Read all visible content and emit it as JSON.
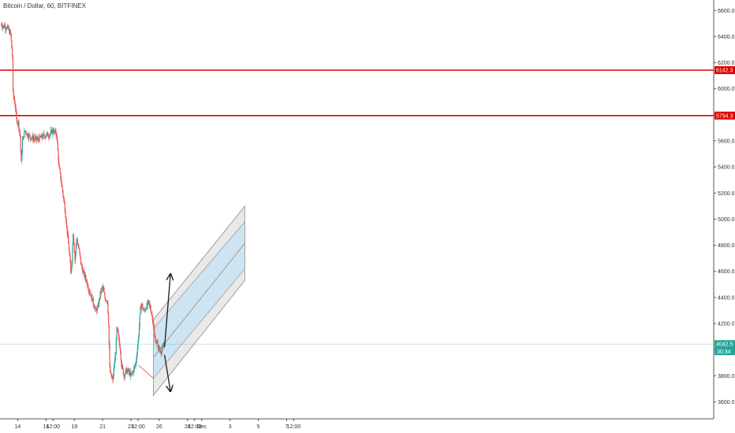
{
  "chart_data": {
    "type": "candlestick",
    "title": "Bitcoin / Dollar, 60, BITFINEX",
    "ylim": [
      3470,
      6680
    ],
    "y_ticks": [
      3600,
      3800,
      4000,
      4200,
      4400,
      4600,
      4800,
      5000,
      5200,
      5400,
      5600,
      5800,
      6000,
      6200,
      6400,
      6600
    ],
    "y_tick_labels": [
      "3600.0",
      "3800.0",
      "4000.0",
      "4200.0",
      "4400.0",
      "4600.0",
      "4800.0",
      "5000.0",
      "5200.0",
      "5400.0",
      "5600.0",
      "5800.0",
      "6000.0",
      "6200.0",
      "6400.0",
      "6600.0"
    ],
    "xlim": [
      -30,
      1180
    ],
    "x_ticks": [
      {
        "t": 0,
        "label": "14"
      },
      {
        "t": 48,
        "label": "16"
      },
      {
        "t": 60,
        "label": "12:00"
      },
      {
        "t": 96,
        "label": "19"
      },
      {
        "t": 144,
        "label": "21"
      },
      {
        "t": 192,
        "label": "23"
      },
      {
        "t": 204,
        "label": "12:00"
      },
      {
        "t": 240,
        "label": "26"
      },
      {
        "t": 288,
        "label": "28"
      },
      {
        "t": 300,
        "label": "12:00"
      },
      {
        "t": 312,
        "label": "Dec"
      },
      {
        "t": 360,
        "label": "3"
      },
      {
        "t": 408,
        "label": "5"
      },
      {
        "t": 456,
        "label": "7"
      },
      {
        "t": 468,
        "label": "12:00"
      }
    ],
    "grid": false,
    "colors": {
      "up": "#26a69a",
      "down": "#ef5350",
      "level_line": "#e00000",
      "price_line": "#26a69a",
      "channel_fill": "#cfe4f2",
      "channel_border": "#9e9e9e"
    },
    "horizontal_levels": [
      {
        "label": "6142.3",
        "value": 6142.3
      },
      {
        "label": "5794.3",
        "value": 5794.3
      }
    ],
    "current_price": {
      "label": "4042.5",
      "value": 4042.5,
      "countdown": "30:34"
    },
    "keypoints": [
      [
        -28,
        6490
      ],
      [
        -24,
        6480
      ],
      [
        -18,
        6470
      ],
      [
        -12,
        6420
      ],
      [
        -9,
        6250
      ],
      [
        -8,
        5970
      ],
      [
        -6,
        5920
      ],
      [
        -4,
        5860
      ],
      [
        -2,
        5760
      ],
      [
        1,
        5740
      ],
      [
        4,
        5640
      ],
      [
        6,
        5430
      ],
      [
        8,
        5600
      ],
      [
        12,
        5680
      ],
      [
        18,
        5640
      ],
      [
        26,
        5620
      ],
      [
        34,
        5610
      ],
      [
        44,
        5640
      ],
      [
        54,
        5650
      ],
      [
        60,
        5680
      ],
      [
        66,
        5650
      ],
      [
        70,
        5400
      ],
      [
        76,
        5220
      ],
      [
        80,
        5080
      ],
      [
        84,
        4900
      ],
      [
        88,
        4720
      ],
      [
        90,
        4580
      ],
      [
        92,
        4700
      ],
      [
        94,
        4900
      ],
      [
        97,
        4690
      ],
      [
        100,
        4850
      ],
      [
        104,
        4760
      ],
      [
        108,
        4640
      ],
      [
        112,
        4580
      ],
      [
        116,
        4540
      ],
      [
        120,
        4470
      ],
      [
        124,
        4420
      ],
      [
        128,
        4360
      ],
      [
        132,
        4300
      ],
      [
        136,
        4320
      ],
      [
        140,
        4430
      ],
      [
        144,
        4480
      ],
      [
        148,
        4390
      ],
      [
        152,
        4380
      ],
      [
        154,
        4200
      ],
      [
        156,
        3860
      ],
      [
        158,
        3800
      ],
      [
        161,
        3760
      ],
      [
        164,
        3900
      ],
      [
        166,
        3980
      ],
      [
        168,
        4160
      ],
      [
        170,
        4120
      ],
      [
        172,
        4060
      ],
      [
        174,
        4000
      ],
      [
        176,
        3880
      ],
      [
        178,
        3850
      ],
      [
        180,
        3800
      ],
      [
        184,
        3840
      ],
      [
        188,
        3830
      ],
      [
        192,
        3800
      ],
      [
        196,
        3840
      ],
      [
        200,
        3890
      ],
      [
        204,
        4060
      ],
      [
        206,
        4180
      ],
      [
        208,
        4310
      ],
      [
        210,
        4350
      ],
      [
        212,
        4320
      ],
      [
        214,
        4290
      ],
      [
        218,
        4330
      ],
      [
        222,
        4360
      ],
      [
        226,
        4300
      ],
      [
        230,
        4200
      ],
      [
        232,
        4090
      ],
      [
        236,
        4050
      ],
      [
        240,
        4000
      ],
      [
        244,
        3990
      ],
      [
        248,
        4030
      ]
    ],
    "channel": {
      "t_start": 230,
      "t_end": 385,
      "lower_start": 3650,
      "lower_end": 4530,
      "upper_start": 4230,
      "upper_end": 5100,
      "inner_lower_start": 3780,
      "inner_lower_end": 4620,
      "inner_upper_start": 4160,
      "inner_upper_end": 4980,
      "trend_start": {
        "t": 205,
        "value": 3880
      }
    },
    "arrows": [
      {
        "from": {
          "t": 249,
          "value": 4020
        },
        "to": {
          "t": 259,
          "value": 4580
        }
      },
      {
        "from": {
          "t": 249,
          "value": 3960
        },
        "to": {
          "t": 259,
          "value": 3680
        }
      }
    ]
  }
}
